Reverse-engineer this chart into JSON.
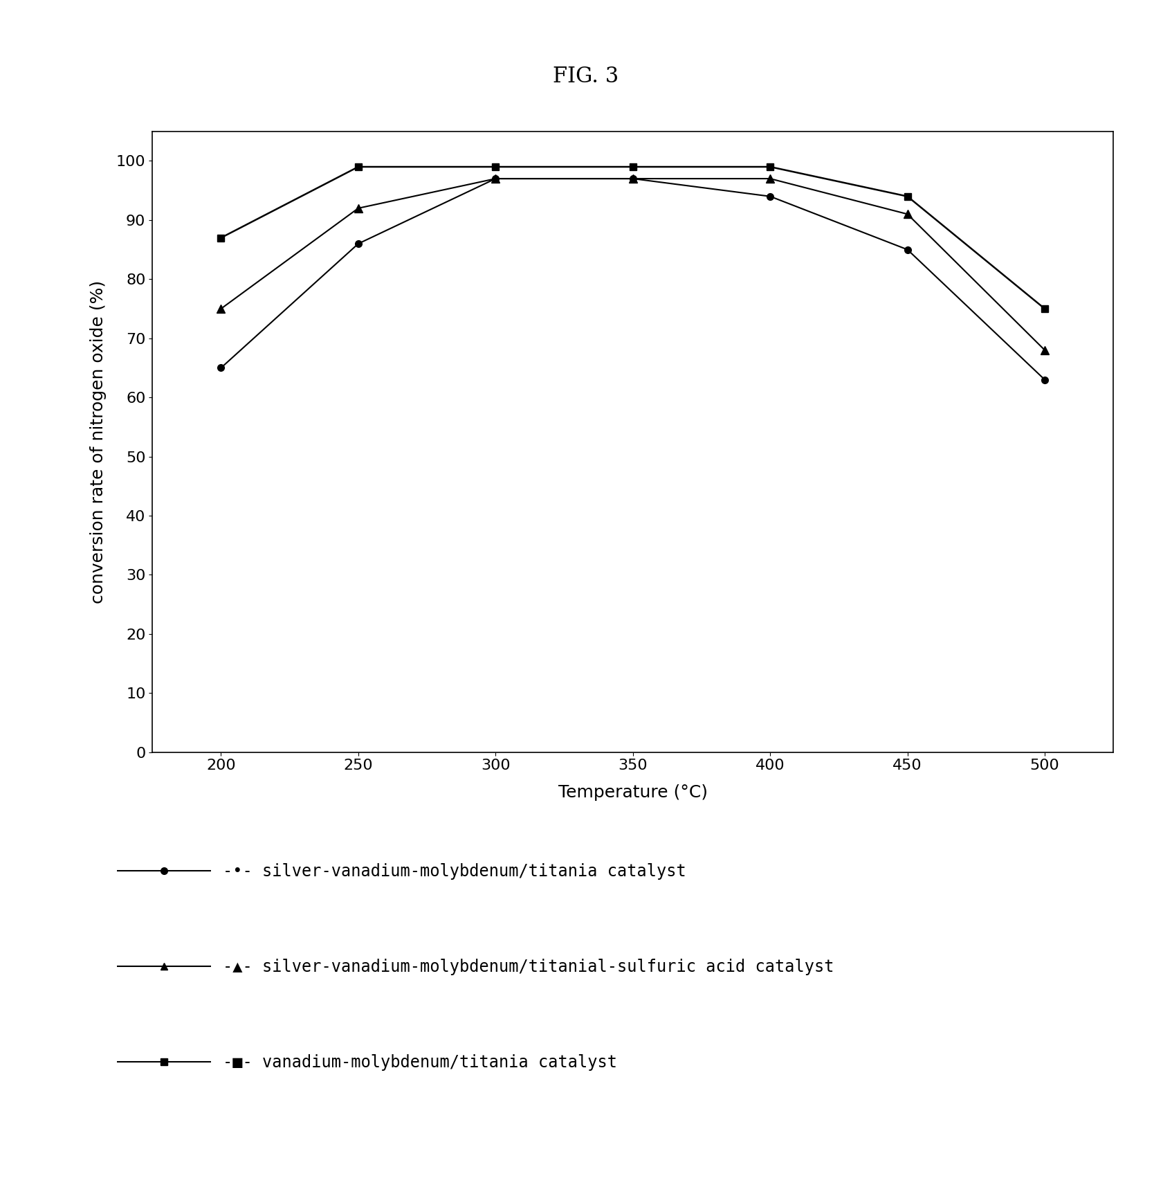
{
  "title": "FIG. 3",
  "xlabel": "Temperature (°C)",
  "ylabel": "conversion rate of nitrogen oxide (%)",
  "x": [
    200,
    250,
    300,
    350,
    400,
    450,
    500
  ],
  "series": [
    {
      "label": "-•- silver-vanadium-molybdenum/titania catalyst",
      "values": [
        65,
        86,
        97,
        97,
        94,
        85,
        63
      ],
      "marker": "o",
      "color": "#000000",
      "markersize": 7,
      "linewidth": 1.5
    },
    {
      "label": "-▲- silver-vanadium-molybdenum/titanial-sulfuric acid catalyst",
      "values": [
        75,
        92,
        97,
        97,
        97,
        91,
        68
      ],
      "marker": "^",
      "color": "#000000",
      "markersize": 8,
      "linewidth": 1.5
    },
    {
      "label": "-■- vanadium-molybdenum/titania catalyst",
      "values": [
        87,
        99,
        99,
        99,
        99,
        94,
        75
      ],
      "marker": "s",
      "color": "#000000",
      "markersize": 7,
      "linewidth": 1.8
    }
  ],
  "ylim": [
    0,
    105
  ],
  "yticks": [
    0,
    10,
    20,
    30,
    40,
    50,
    60,
    70,
    80,
    90,
    100
  ],
  "xticks": [
    200,
    250,
    300,
    350,
    400,
    450,
    500
  ],
  "background_color": "#ffffff",
  "title_fontsize": 22,
  "axis_label_fontsize": 18,
  "tick_fontsize": 16,
  "legend_fontsize": 17,
  "legend_labels": [
    "-•- silver-vanadium-molybdenum/titania catalyst",
    "-▲- silver-vanadium-molybdenum/titanial-sulfuric acid catalyst",
    "-■- vanadium-molybdenum/titania catalyst"
  ]
}
